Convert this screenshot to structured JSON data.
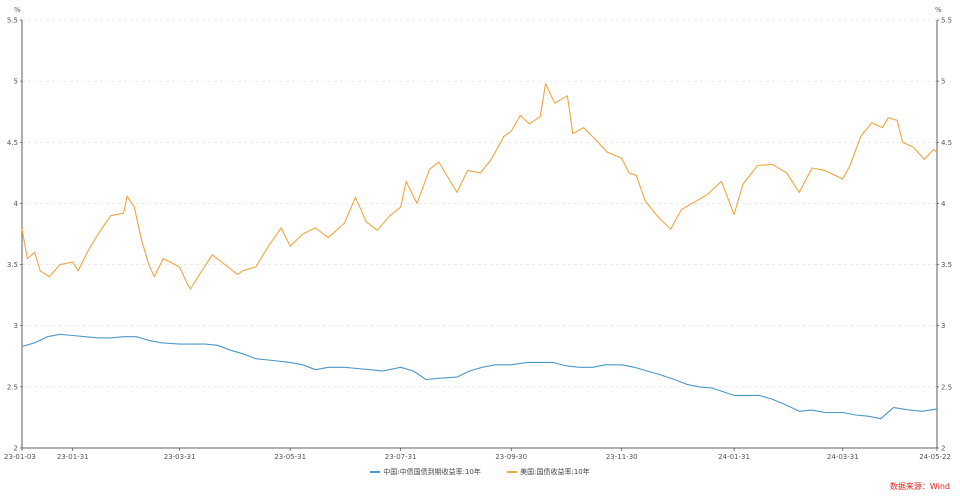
{
  "chart_data": {
    "type": "line",
    "y_unit_left": "%",
    "y_unit_right": "%",
    "ylim": [
      2,
      5.5
    ],
    "y_ticks": [
      "2",
      "2.5",
      "3",
      "3.5",
      "4",
      "4.5",
      "5",
      "5.5"
    ],
    "x_range": [
      "2023-01-03",
      "2024-05-22"
    ],
    "x_ticks": [
      {
        "date": "2023-01-03",
        "label": "23-01-03"
      },
      {
        "date": "2023-01-31",
        "label": "23-01-31"
      },
      {
        "date": "2023-03-31",
        "label": "23-03-31"
      },
      {
        "date": "2023-05-31",
        "label": "23-05-31"
      },
      {
        "date": "2023-07-31",
        "label": "23-07-31"
      },
      {
        "date": "2023-09-30",
        "label": "23-09-30"
      },
      {
        "date": "2023-11-30",
        "label": "23-11-30"
      },
      {
        "date": "2024-01-31",
        "label": "24-01-31"
      },
      {
        "date": "2024-03-31",
        "label": "24-03-31"
      },
      {
        "date": "2024-05-22",
        "label": "24-05-22"
      }
    ],
    "grid": "horizontal-dashed",
    "legend_position": "bottom",
    "series": [
      {
        "name": "中国:中债国债到期收益率:10年",
        "color": "#4e97c6",
        "points": [
          [
            "2023-01-03",
            2.83
          ],
          [
            "2023-01-10",
            2.86
          ],
          [
            "2023-01-17",
            2.91
          ],
          [
            "2023-01-24",
            2.93
          ],
          [
            "2023-01-31",
            2.92
          ],
          [
            "2023-02-07",
            2.91
          ],
          [
            "2023-02-14",
            2.9
          ],
          [
            "2023-02-21",
            2.9
          ],
          [
            "2023-02-28",
            2.91
          ],
          [
            "2023-03-07",
            2.91
          ],
          [
            "2023-03-14",
            2.88
          ],
          [
            "2023-03-21",
            2.86
          ],
          [
            "2023-03-31",
            2.85
          ],
          [
            "2023-04-07",
            2.85
          ],
          [
            "2023-04-14",
            2.85
          ],
          [
            "2023-04-21",
            2.84
          ],
          [
            "2023-04-28",
            2.8
          ],
          [
            "2023-05-05",
            2.77
          ],
          [
            "2023-05-12",
            2.73
          ],
          [
            "2023-05-19",
            2.72
          ],
          [
            "2023-05-31",
            2.7
          ],
          [
            "2023-06-07",
            2.68
          ],
          [
            "2023-06-14",
            2.64
          ],
          [
            "2023-06-21",
            2.66
          ],
          [
            "2023-06-30",
            2.66
          ],
          [
            "2023-07-07",
            2.65
          ],
          [
            "2023-07-14",
            2.64
          ],
          [
            "2023-07-21",
            2.63
          ],
          [
            "2023-07-31",
            2.66
          ],
          [
            "2023-08-07",
            2.63
          ],
          [
            "2023-08-14",
            2.56
          ],
          [
            "2023-08-21",
            2.57
          ],
          [
            "2023-08-31",
            2.58
          ],
          [
            "2023-09-07",
            2.63
          ],
          [
            "2023-09-14",
            2.66
          ],
          [
            "2023-09-21",
            2.68
          ],
          [
            "2023-09-30",
            2.68
          ],
          [
            "2023-10-09",
            2.7
          ],
          [
            "2023-10-16",
            2.7
          ],
          [
            "2023-10-23",
            2.7
          ],
          [
            "2023-10-31",
            2.67
          ],
          [
            "2023-11-07",
            2.66
          ],
          [
            "2023-11-14",
            2.66
          ],
          [
            "2023-11-21",
            2.68
          ],
          [
            "2023-11-30",
            2.68
          ],
          [
            "2023-12-07",
            2.66
          ],
          [
            "2023-12-14",
            2.63
          ],
          [
            "2023-12-21",
            2.6
          ],
          [
            "2023-12-29",
            2.56
          ],
          [
            "2024-01-05",
            2.52
          ],
          [
            "2024-01-12",
            2.5
          ],
          [
            "2024-01-19",
            2.49
          ],
          [
            "2024-01-31",
            2.43
          ],
          [
            "2024-02-07",
            2.43
          ],
          [
            "2024-02-14",
            2.43
          ],
          [
            "2024-02-21",
            2.4
          ],
          [
            "2024-02-29",
            2.35
          ],
          [
            "2024-03-07",
            2.3
          ],
          [
            "2024-03-14",
            2.31
          ],
          [
            "2024-03-21",
            2.29
          ],
          [
            "2024-03-31",
            2.29
          ],
          [
            "2024-04-07",
            2.27
          ],
          [
            "2024-04-14",
            2.26
          ],
          [
            "2024-04-21",
            2.24
          ],
          [
            "2024-04-28",
            2.33
          ],
          [
            "2024-05-07",
            2.31
          ],
          [
            "2024-05-14",
            2.3
          ],
          [
            "2024-05-22",
            2.32
          ]
        ]
      },
      {
        "name": "美国:国债收益率:10年",
        "color": "#f0a540",
        "points": [
          [
            "2023-01-03",
            3.79
          ],
          [
            "2023-01-06",
            3.55
          ],
          [
            "2023-01-10",
            3.6
          ],
          [
            "2023-01-13",
            3.45
          ],
          [
            "2023-01-18",
            3.4
          ],
          [
            "2023-01-24",
            3.5
          ],
          [
            "2023-01-31",
            3.52
          ],
          [
            "2023-02-03",
            3.45
          ],
          [
            "2023-02-08",
            3.6
          ],
          [
            "2023-02-14",
            3.75
          ],
          [
            "2023-02-21",
            3.9
          ],
          [
            "2023-02-28",
            3.92
          ],
          [
            "2023-03-02",
            4.06
          ],
          [
            "2023-03-06",
            3.97
          ],
          [
            "2023-03-10",
            3.7
          ],
          [
            "2023-03-14",
            3.5
          ],
          [
            "2023-03-17",
            3.4
          ],
          [
            "2023-03-22",
            3.55
          ],
          [
            "2023-03-31",
            3.48
          ],
          [
            "2023-04-04",
            3.35
          ],
          [
            "2023-04-06",
            3.3
          ],
          [
            "2023-04-11",
            3.42
          ],
          [
            "2023-04-18",
            3.58
          ],
          [
            "2023-04-25",
            3.5
          ],
          [
            "2023-05-02",
            3.42
          ],
          [
            "2023-05-05",
            3.45
          ],
          [
            "2023-05-12",
            3.48
          ],
          [
            "2023-05-19",
            3.65
          ],
          [
            "2023-05-26",
            3.8
          ],
          [
            "2023-05-31",
            3.65
          ],
          [
            "2023-06-07",
            3.75
          ],
          [
            "2023-06-14",
            3.8
          ],
          [
            "2023-06-21",
            3.72
          ],
          [
            "2023-06-30",
            3.84
          ],
          [
            "2023-07-06",
            4.05
          ],
          [
            "2023-07-12",
            3.85
          ],
          [
            "2023-07-18",
            3.78
          ],
          [
            "2023-07-25",
            3.9
          ],
          [
            "2023-07-31",
            3.97
          ],
          [
            "2023-08-03",
            4.18
          ],
          [
            "2023-08-09",
            4.0
          ],
          [
            "2023-08-16",
            4.28
          ],
          [
            "2023-08-21",
            4.34
          ],
          [
            "2023-08-25",
            4.24
          ],
          [
            "2023-08-31",
            4.09
          ],
          [
            "2023-09-06",
            4.27
          ],
          [
            "2023-09-13",
            4.25
          ],
          [
            "2023-09-19",
            4.36
          ],
          [
            "2023-09-26",
            4.55
          ],
          [
            "2023-09-30",
            4.59
          ],
          [
            "2023-10-05",
            4.72
          ],
          [
            "2023-10-10",
            4.65
          ],
          [
            "2023-10-16",
            4.71
          ],
          [
            "2023-10-19",
            4.98
          ],
          [
            "2023-10-24",
            4.82
          ],
          [
            "2023-10-31",
            4.88
          ],
          [
            "2023-11-03",
            4.57
          ],
          [
            "2023-11-09",
            4.62
          ],
          [
            "2023-11-15",
            4.53
          ],
          [
            "2023-11-22",
            4.42
          ],
          [
            "2023-11-30",
            4.37
          ],
          [
            "2023-12-04",
            4.25
          ],
          [
            "2023-12-08",
            4.23
          ],
          [
            "2023-12-13",
            4.02
          ],
          [
            "2023-12-20",
            3.89
          ],
          [
            "2023-12-27",
            3.79
          ],
          [
            "2024-01-02",
            3.95
          ],
          [
            "2024-01-09",
            4.01
          ],
          [
            "2024-01-16",
            4.07
          ],
          [
            "2024-01-24",
            4.18
          ],
          [
            "2024-01-31",
            3.91
          ],
          [
            "2024-02-05",
            4.16
          ],
          [
            "2024-02-13",
            4.31
          ],
          [
            "2024-02-21",
            4.32
          ],
          [
            "2024-02-29",
            4.25
          ],
          [
            "2024-03-07",
            4.09
          ],
          [
            "2024-03-14",
            4.29
          ],
          [
            "2024-03-21",
            4.27
          ],
          [
            "2024-03-31",
            4.2
          ],
          [
            "2024-04-04",
            4.31
          ],
          [
            "2024-04-10",
            4.55
          ],
          [
            "2024-04-16",
            4.66
          ],
          [
            "2024-04-22",
            4.62
          ],
          [
            "2024-04-25",
            4.7
          ],
          [
            "2024-04-30",
            4.68
          ],
          [
            "2024-05-03",
            4.5
          ],
          [
            "2024-05-09",
            4.46
          ],
          [
            "2024-05-15",
            4.36
          ],
          [
            "2024-05-20",
            4.44
          ],
          [
            "2024-05-22",
            4.42
          ]
        ]
      }
    ],
    "source_label": "数据来源：Wind"
  }
}
